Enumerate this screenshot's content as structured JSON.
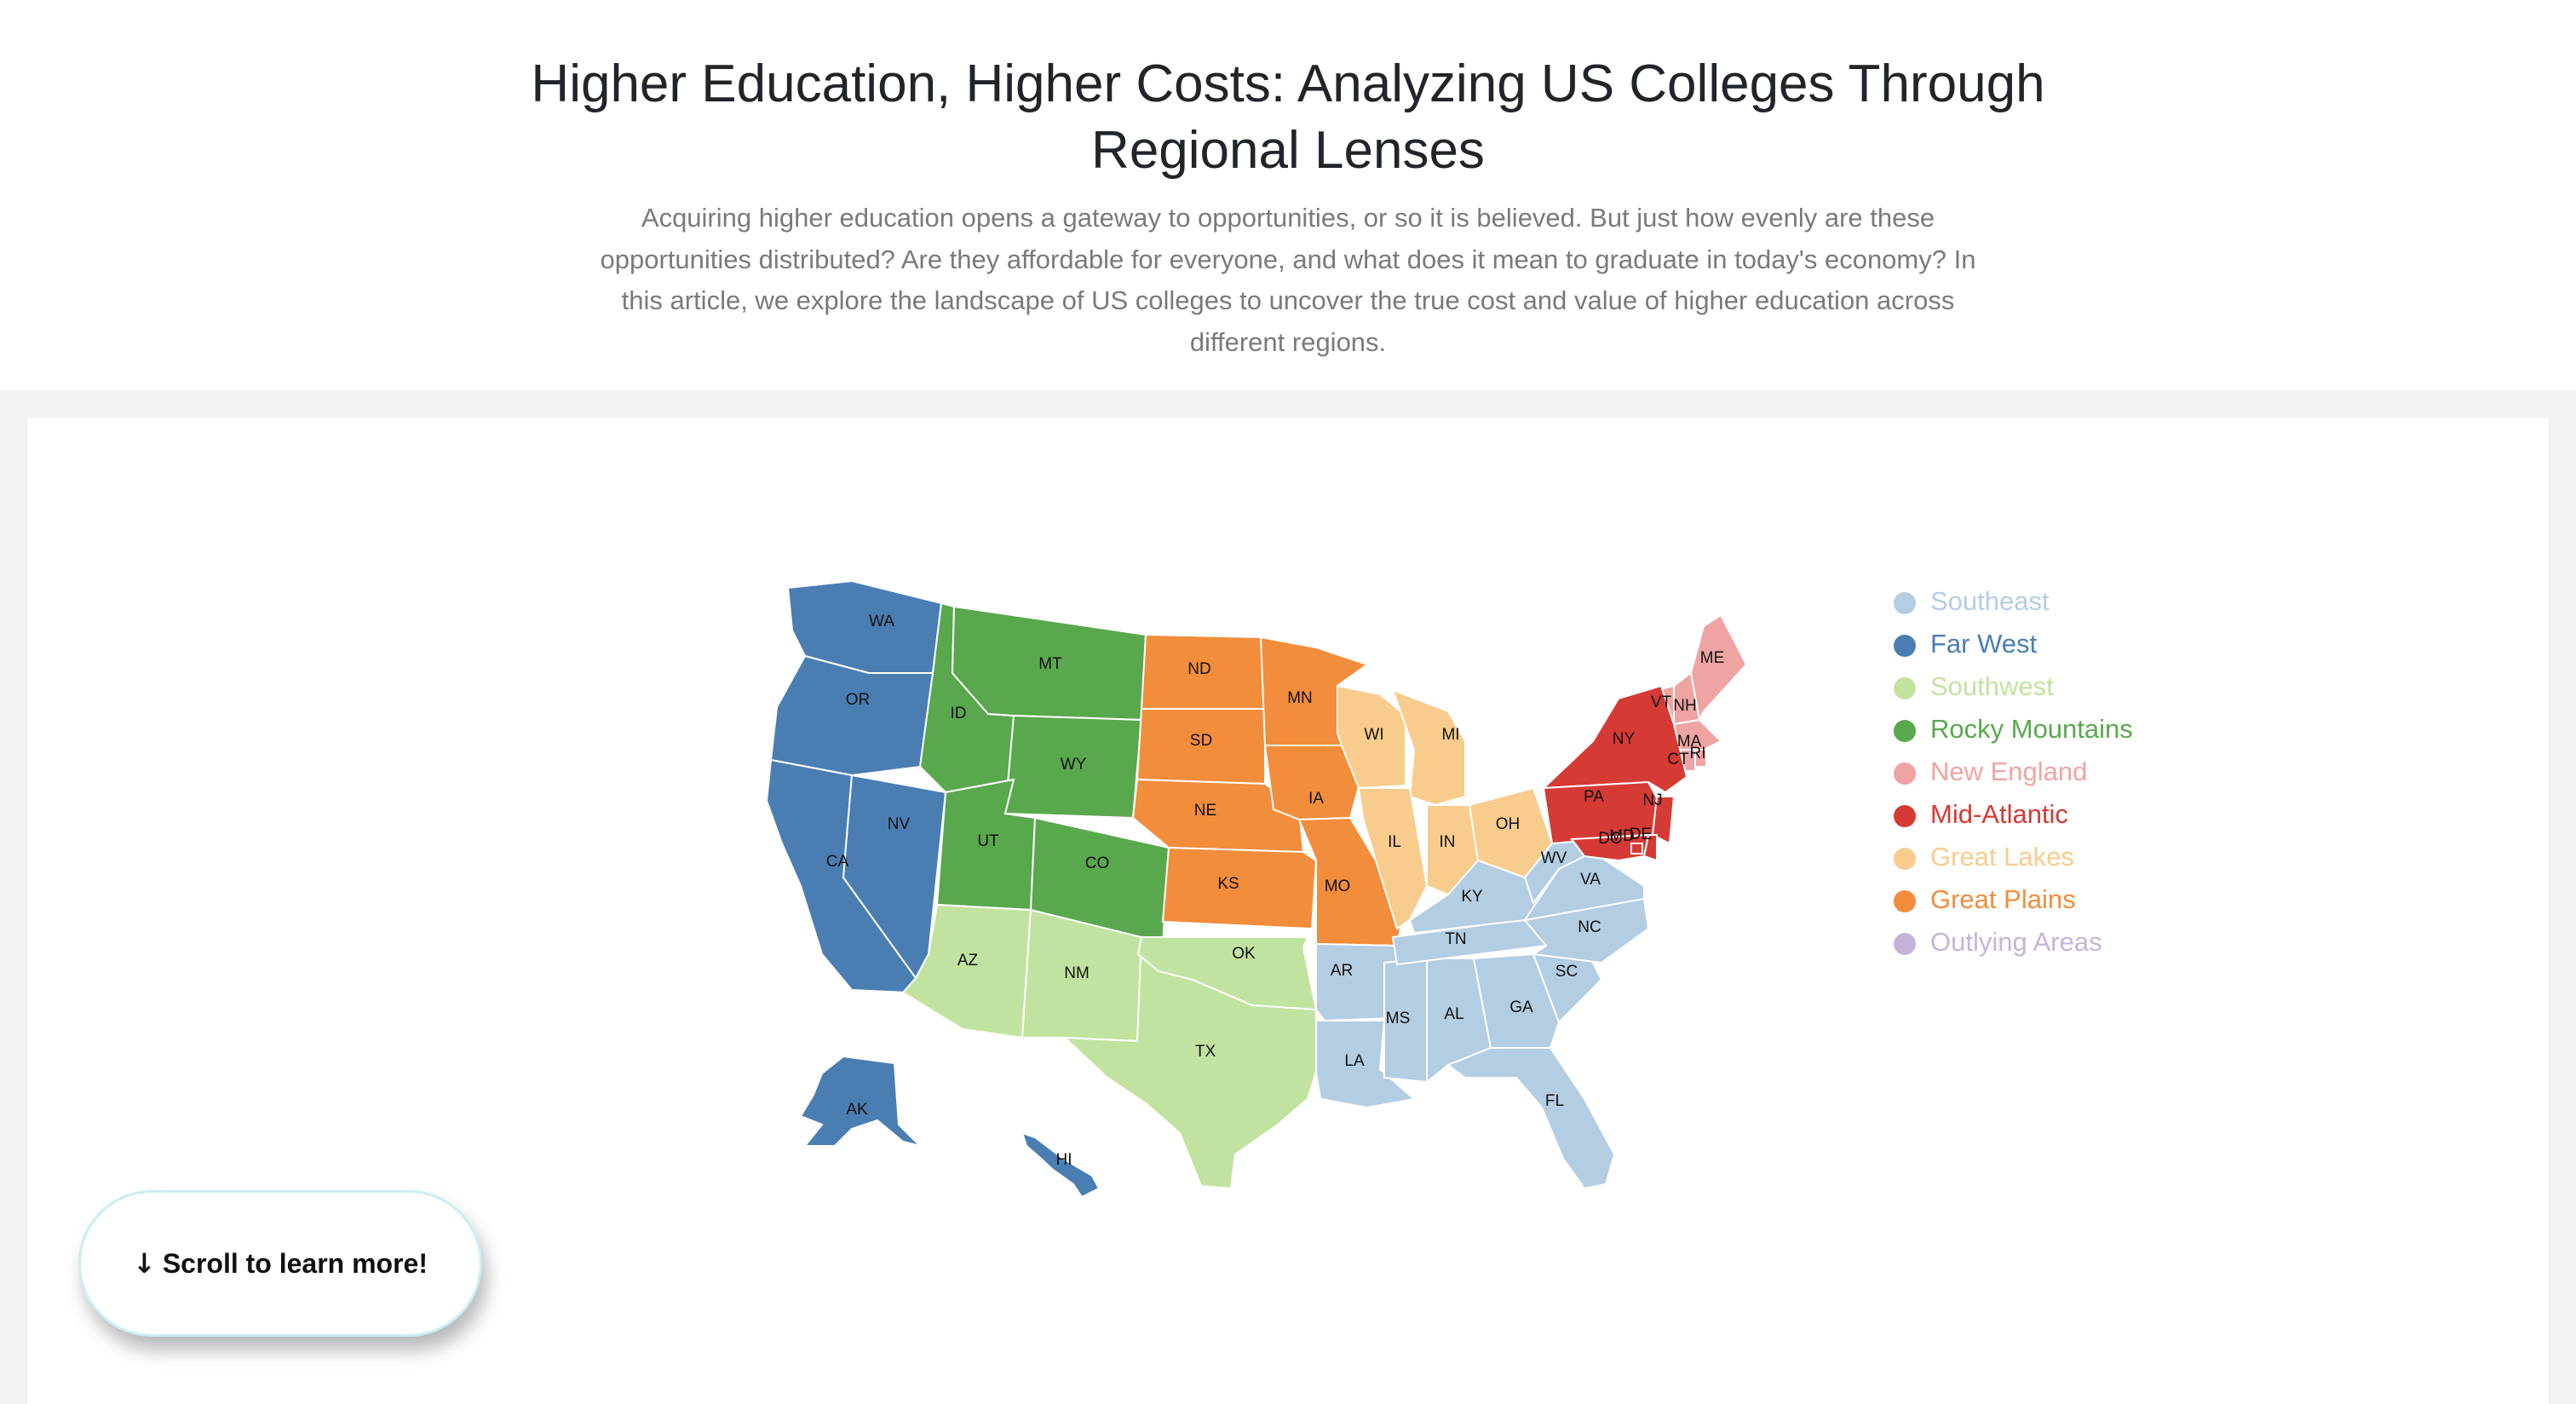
{
  "page": {
    "title": "Higher Education, Higher Costs: Analyzing US Colleges Through Regional Lenses",
    "intro": "Acquiring higher education opens a gateway to opportunities, or so it is believed. But just how evenly are these opportunities distributed? Are they affordable for everyone, and what does it mean to graduate in today's economy? In this article, we explore the landscape of US colleges to uncover the true cost and value of higher education across different regions."
  },
  "regions": [
    {
      "name": "Southeast",
      "color": "#b3cde3"
    },
    {
      "name": "Far West",
      "color": "#4a7eb3"
    },
    {
      "name": "Southwest",
      "color": "#c2e39f"
    },
    {
      "name": "Rocky Mountains",
      "color": "#5aa84e"
    },
    {
      "name": "New England",
      "color": "#f0a3a3"
    },
    {
      "name": "Mid-Atlantic",
      "color": "#d63a34"
    },
    {
      "name": "Great Lakes",
      "color": "#f7cc8c"
    },
    {
      "name": "Great Plains",
      "color": "#f28d3c"
    },
    {
      "name": "Outlying Areas",
      "color": "#c7b3da"
    }
  ],
  "states": [
    {
      "abbr": "WA",
      "region": "Far West"
    },
    {
      "abbr": "OR",
      "region": "Far West"
    },
    {
      "abbr": "CA",
      "region": "Far West"
    },
    {
      "abbr": "NV",
      "region": "Far West"
    },
    {
      "abbr": "AK",
      "region": "Far West"
    },
    {
      "abbr": "HI",
      "region": "Far West"
    },
    {
      "abbr": "ID",
      "region": "Rocky Mountains"
    },
    {
      "abbr": "MT",
      "region": "Rocky Mountains"
    },
    {
      "abbr": "WY",
      "region": "Rocky Mountains"
    },
    {
      "abbr": "UT",
      "region": "Rocky Mountains"
    },
    {
      "abbr": "CO",
      "region": "Rocky Mountains"
    },
    {
      "abbr": "AZ",
      "region": "Southwest"
    },
    {
      "abbr": "NM",
      "region": "Southwest"
    },
    {
      "abbr": "TX",
      "region": "Southwest"
    },
    {
      "abbr": "OK",
      "region": "Southwest"
    },
    {
      "abbr": "ND",
      "region": "Great Plains"
    },
    {
      "abbr": "SD",
      "region": "Great Plains"
    },
    {
      "abbr": "NE",
      "region": "Great Plains"
    },
    {
      "abbr": "KS",
      "region": "Great Plains"
    },
    {
      "abbr": "IA",
      "region": "Great Plains"
    },
    {
      "abbr": "MO",
      "region": "Great Plains"
    },
    {
      "abbr": "MN",
      "region": "Great Plains"
    },
    {
      "abbr": "WI",
      "region": "Great Lakes"
    },
    {
      "abbr": "MI",
      "region": "Great Lakes"
    },
    {
      "abbr": "IL",
      "region": "Great Lakes"
    },
    {
      "abbr": "IN",
      "region": "Great Lakes"
    },
    {
      "abbr": "OH",
      "region": "Great Lakes"
    },
    {
      "abbr": "AR",
      "region": "Southeast"
    },
    {
      "abbr": "LA",
      "region": "Southeast"
    },
    {
      "abbr": "MS",
      "region": "Southeast"
    },
    {
      "abbr": "AL",
      "region": "Southeast"
    },
    {
      "abbr": "GA",
      "region": "Southeast"
    },
    {
      "abbr": "FL",
      "region": "Southeast"
    },
    {
      "abbr": "TN",
      "region": "Southeast"
    },
    {
      "abbr": "KY",
      "region": "Southeast"
    },
    {
      "abbr": "SC",
      "region": "Southeast"
    },
    {
      "abbr": "NC",
      "region": "Southeast"
    },
    {
      "abbr": "VA",
      "region": "Southeast"
    },
    {
      "abbr": "WV",
      "region": "Southeast"
    },
    {
      "abbr": "ME",
      "region": "New England"
    },
    {
      "abbr": "NH",
      "region": "New England"
    },
    {
      "abbr": "VT",
      "region": "New England"
    },
    {
      "abbr": "MA",
      "region": "New England"
    },
    {
      "abbr": "RI",
      "region": "New England"
    },
    {
      "abbr": "CT",
      "region": "New England"
    },
    {
      "abbr": "NY",
      "region": "Mid-Atlantic"
    },
    {
      "abbr": "PA",
      "region": "Mid-Atlantic"
    },
    {
      "abbr": "NJ",
      "region": "Mid-Atlantic"
    },
    {
      "abbr": "DE",
      "region": "Mid-Atlantic"
    },
    {
      "abbr": "MD",
      "region": "Mid-Atlantic"
    },
    {
      "abbr": "DC",
      "region": "Mid-Atlantic"
    }
  ],
  "scroll_button": {
    "label": "Scroll to learn more!",
    "icon": "arrow-down-icon"
  }
}
